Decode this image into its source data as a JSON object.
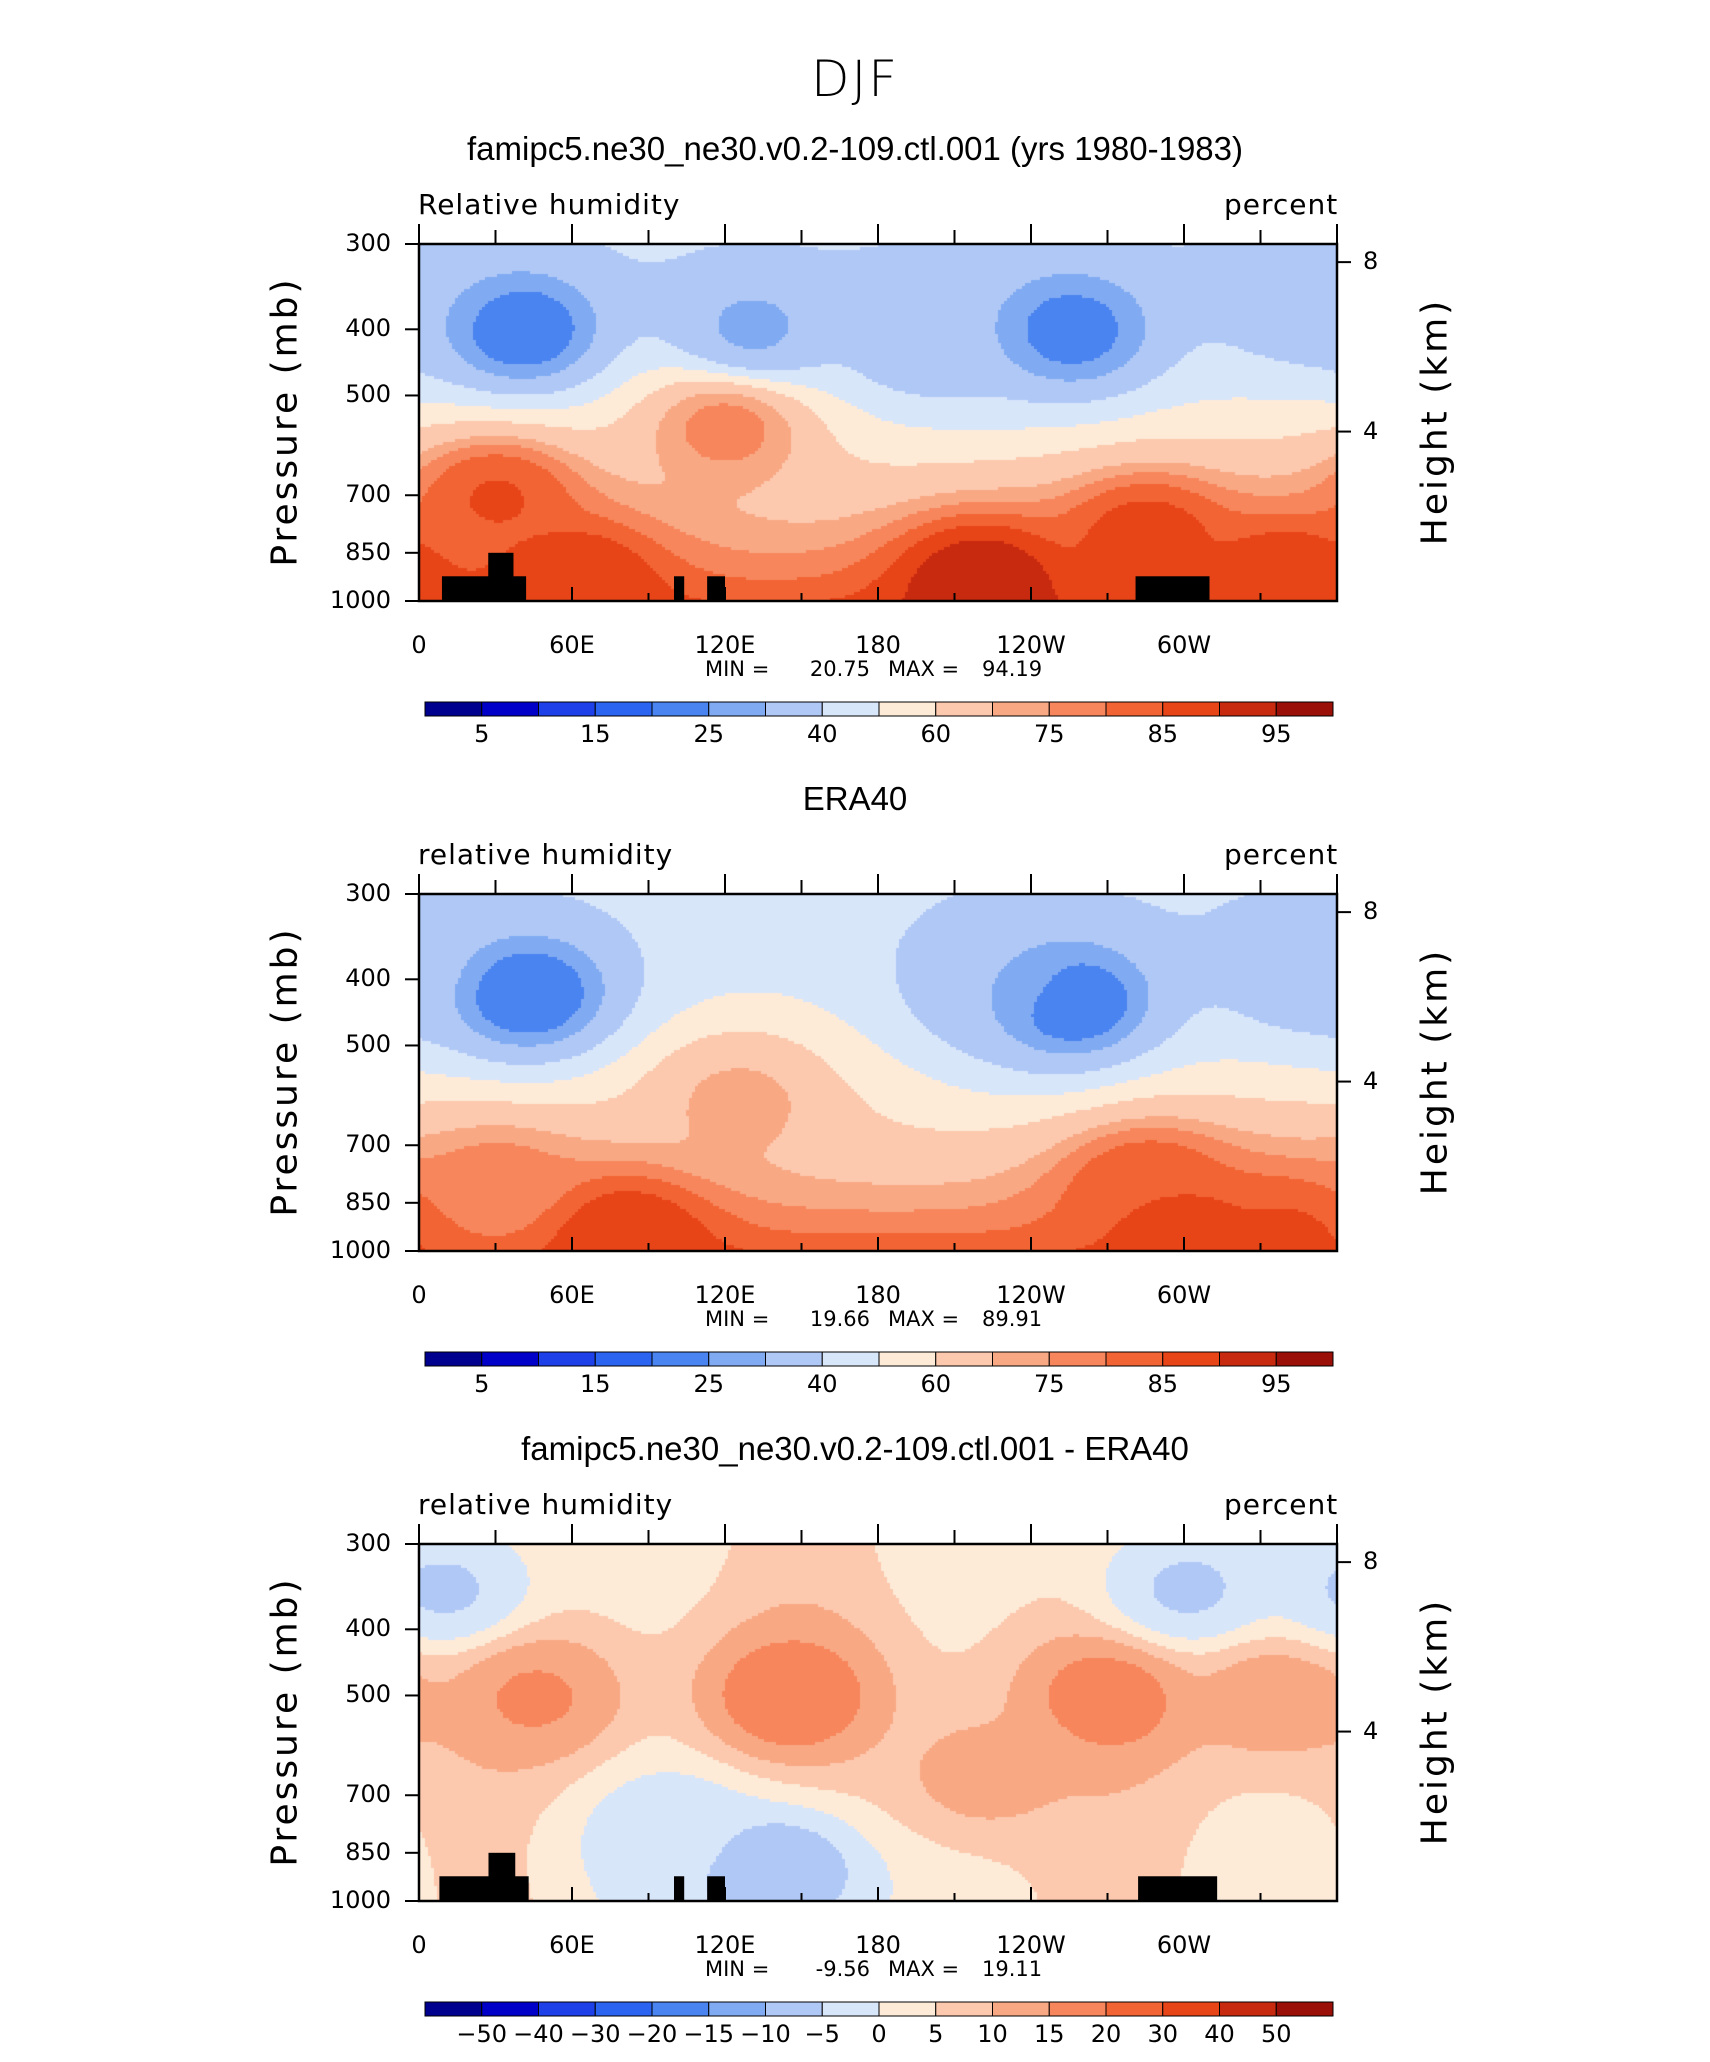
{
  "figure": {
    "title": "DJF"
  },
  "colors": {
    "absolute_scale": [
      "#00008f",
      "#0000c8",
      "#1e40e8",
      "#2a64f0",
      "#4a84f0",
      "#80aaf2",
      "#b0c8f6",
      "#d8e6fa",
      "#fdebd8",
      "#fcc8ae",
      "#f9a884",
      "#f7865c",
      "#f26434",
      "#e74418",
      "#c82a10",
      "#9a0f08"
    ],
    "difference_scale": [
      "#00008f",
      "#0000c8",
      "#1e40e8",
      "#2a64f0",
      "#4a84f0",
      "#80aaf2",
      "#b0c8f6",
      "#d8e6fa",
      "#fdebd8",
      "#fcc8ae",
      "#f9a884",
      "#f7865c",
      "#f26434",
      "#e74418",
      "#c82a10",
      "#9a0f08"
    ],
    "land_mask": "#000000"
  },
  "chart_data": [
    {
      "type": "heatmap",
      "title": "famipc5.ne30_ne30.v0.2-109.ctl.001 (yrs 1980-1983)",
      "variable_label": "Relative humidity",
      "units": "percent",
      "ylabel": "Pressure (mb)",
      "ylabel_right": "Height (km)",
      "x_ticks": [
        "0",
        "60E",
        "120E",
        "180",
        "120W",
        "60W"
      ],
      "x_range": [
        0,
        360
      ],
      "y_ticks": [
        "300",
        "400",
        "500",
        "700",
        "850",
        "1000"
      ],
      "y_range_mb": [
        1000,
        300
      ],
      "y_right_ticks": [
        "8",
        "4"
      ],
      "min_label": "MIN =",
      "min_value": "20.75",
      "max_label": "MAX =",
      "max_value": "94.19",
      "colorbar_labels": [
        "5",
        "15",
        "25",
        "40",
        "60",
        "75",
        "85",
        "95"
      ],
      "grid": false,
      "land_mask_lon": [
        [
          9,
          42
        ],
        [
          100,
          104
        ],
        [
          113,
          120
        ],
        [
          281,
          310
        ]
      ],
      "field_features": [
        {
          "lon": 40,
          "p": 400,
          "value": 20.75
        },
        {
          "lon": 130,
          "p": 400,
          "value": 28
        },
        {
          "lon": 200,
          "p": 400,
          "value": 30
        },
        {
          "lon": 255,
          "p": 400,
          "value": 22
        },
        {
          "lon": 350,
          "p": 350,
          "value": 30
        },
        {
          "lon": 120,
          "p": 550,
          "value": 78
        },
        {
          "lon": 30,
          "p": 700,
          "value": 86
        },
        {
          "lon": 285,
          "p": 800,
          "value": 88
        },
        {
          "lon": 220,
          "p": 930,
          "value": 94.19
        },
        {
          "lon": 60,
          "p": 930,
          "value": 90
        },
        {
          "lon": 340,
          "p": 930,
          "value": 90
        }
      ]
    },
    {
      "type": "heatmap",
      "title": "ERA40",
      "variable_label": "relative humidity",
      "units": "percent",
      "ylabel": "Pressure (mb)",
      "ylabel_right": "Height (km)",
      "x_ticks": [
        "0",
        "60E",
        "120E",
        "180",
        "120W",
        "60W"
      ],
      "x_range": [
        0,
        360
      ],
      "y_ticks": [
        "300",
        "400",
        "500",
        "700",
        "850",
        "1000"
      ],
      "y_range_mb": [
        1000,
        300
      ],
      "y_right_ticks": [
        "8",
        "4"
      ],
      "min_label": "MIN =",
      "min_value": "19.66",
      "max_label": "MAX =",
      "max_value": "89.91",
      "colorbar_labels": [
        "5",
        "15",
        "25",
        "40",
        "60",
        "75",
        "85",
        "95"
      ],
      "grid": false,
      "land_mask_lon": [],
      "field_features": [
        {
          "lon": 42,
          "p": 420,
          "value": 20
        },
        {
          "lon": 255,
          "p": 430,
          "value": 19.66
        },
        {
          "lon": 350,
          "p": 380,
          "value": 32
        },
        {
          "lon": 230,
          "p": 400,
          "value": 30
        },
        {
          "lon": 125,
          "p": 600,
          "value": 72
        },
        {
          "lon": 30,
          "p": 800,
          "value": 78
        },
        {
          "lon": 285,
          "p": 800,
          "value": 85
        },
        {
          "lon": 80,
          "p": 950,
          "value": 89.91
        },
        {
          "lon": 300,
          "p": 950,
          "value": 88
        },
        {
          "lon": 340,
          "p": 950,
          "value": 86
        }
      ]
    },
    {
      "type": "heatmap",
      "title": "famipc5.ne30_ne30.v0.2-109.ctl.001 - ERA40",
      "variable_label": "relative humidity",
      "units": "percent",
      "ylabel": "Pressure (mb)",
      "ylabel_right": "Height (km)",
      "x_ticks": [
        "0",
        "60E",
        "120E",
        "180",
        "120W",
        "60W"
      ],
      "x_range": [
        0,
        360
      ],
      "y_ticks": [
        "300",
        "400",
        "500",
        "700",
        "850",
        "1000"
      ],
      "y_range_mb": [
        1000,
        300
      ],
      "y_right_ticks": [
        "8",
        "4"
      ],
      "min_label": "MIN =",
      "min_value": "-9.56",
      "max_label": "MAX =",
      "max_value": "19.11",
      "colorbar_labels": [
        "−50",
        "−40",
        "−30",
        "−20",
        "−15",
        "−10",
        "−5",
        "0",
        "5",
        "10",
        "15",
        "20",
        "30",
        "40",
        "50"
      ],
      "grid": false,
      "land_mask_lon": [
        [
          8,
          43
        ],
        [
          100,
          104
        ],
        [
          113,
          120
        ],
        [
          282,
          313
        ]
      ],
      "field_features": [
        {
          "lon": 145,
          "p": 500,
          "value": 19.11
        },
        {
          "lon": 270,
          "p": 500,
          "value": 18
        },
        {
          "lon": 45,
          "p": 500,
          "value": 16
        },
        {
          "lon": 335,
          "p": 500,
          "value": 14
        },
        {
          "lon": 220,
          "p": 650,
          "value": 12
        },
        {
          "lon": 140,
          "p": 900,
          "value": -9.56
        },
        {
          "lon": 100,
          "p": 800,
          "value": -4
        },
        {
          "lon": 300,
          "p": 350,
          "value": -6
        },
        {
          "lon": 10,
          "p": 350,
          "value": -6
        }
      ]
    }
  ]
}
